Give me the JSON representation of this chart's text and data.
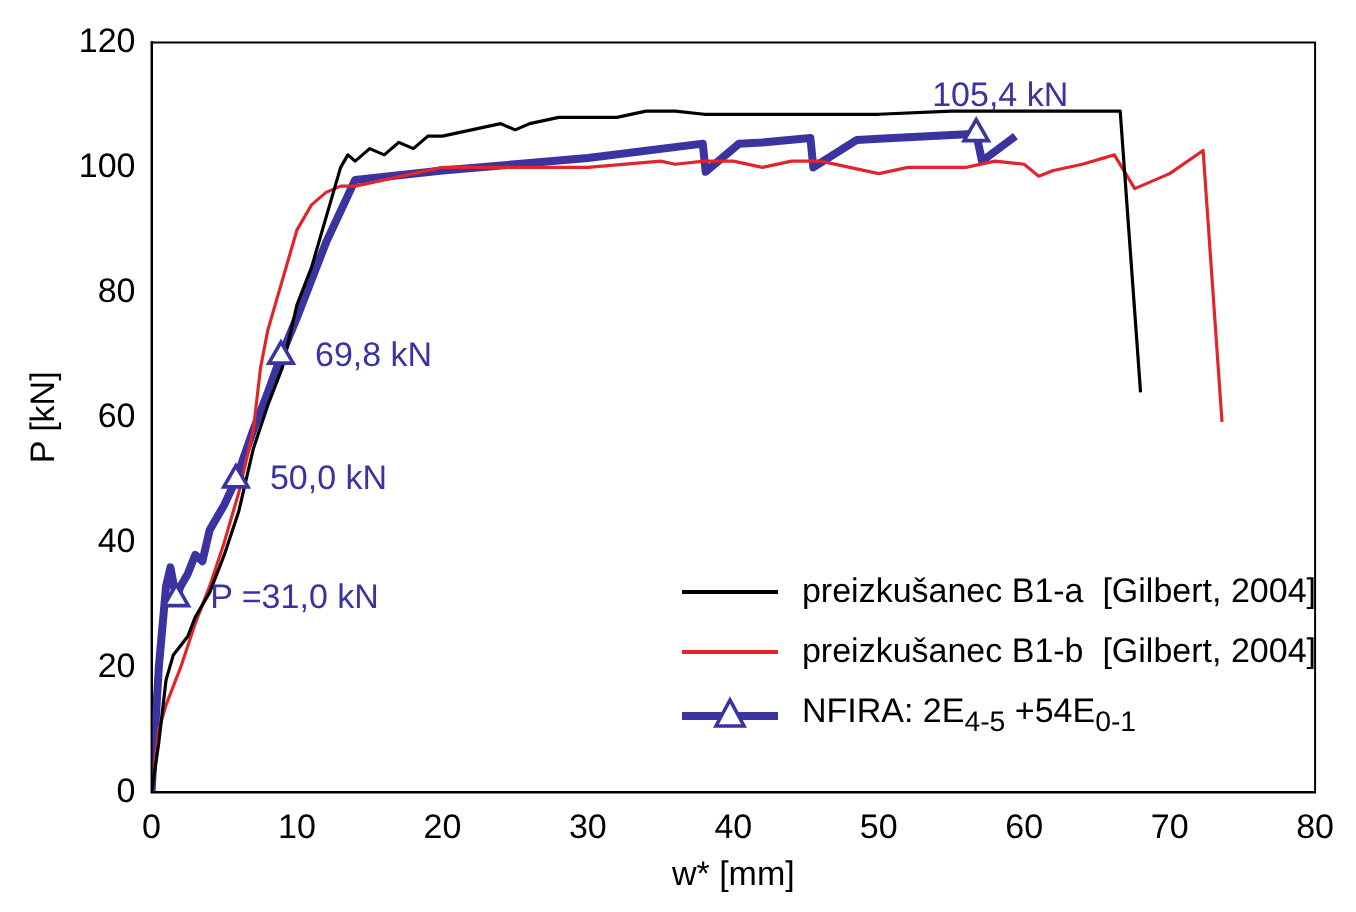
{
  "chart_data": {
    "type": "line",
    "xlabel": "w* [mm]",
    "ylabel": "P [kN]",
    "xlim": [
      0,
      80
    ],
    "xticks": [
      0,
      10,
      20,
      30,
      40,
      50,
      60,
      70,
      80
    ],
    "ylim": [
      0,
      120
    ],
    "yticks": [
      0,
      20,
      40,
      60,
      80,
      100,
      120
    ],
    "grid": false,
    "legend": "bottom right",
    "series": [
      {
        "name": "preizkušanec B1-a  [Gilbert, 2004]",
        "color": "#000000",
        "marker": "none",
        "x": [
          0,
          0.5,
          1,
          1.5,
          2.5,
          3,
          4,
          5,
          6,
          7,
          8,
          9,
          10,
          11,
          12,
          13,
          13.5,
          14,
          15,
          16,
          17,
          18,
          19,
          20,
          22,
          24,
          25,
          26,
          28,
          30,
          32,
          34,
          36,
          38,
          40,
          45,
          50,
          55,
          60,
          64,
          66.6,
          68
        ],
        "values": [
          0,
          8,
          18,
          22,
          25,
          28,
          32,
          38,
          45,
          55,
          62,
          68,
          78,
          84,
          92,
          100,
          102,
          101,
          103,
          102,
          104,
          103,
          105,
          105,
          106,
          107,
          106,
          107,
          108,
          108,
          108,
          109,
          109,
          108.5,
          108.5,
          108.5,
          108.5,
          109,
          109,
          109,
          109,
          64
        ]
      },
      {
        "name": "preizkušanec B1-b  [Gilbert, 2004]",
        "color": "#e0262b",
        "marker": "none",
        "x": [
          0,
          0.5,
          1,
          2,
          3,
          4,
          5,
          6,
          7,
          7.5,
          8,
          9,
          10,
          11,
          12,
          13,
          14,
          16,
          18,
          20,
          25,
          30,
          35,
          36,
          38,
          40,
          42,
          44,
          46,
          48,
          50,
          52,
          54,
          56,
          58,
          60,
          61,
          62,
          64,
          66.2,
          67.6,
          70,
          72.3,
          73.6
        ],
        "values": [
          0,
          10,
          14,
          20,
          27,
          33,
          40,
          48,
          58,
          68,
          74,
          82,
          90,
          94,
          96,
          97,
          97,
          98,
          99,
          100,
          100,
          100,
          101,
          100.5,
          101,
          101,
          100,
          101,
          101,
          100,
          99,
          100,
          100,
          100,
          101,
          100.5,
          98.6,
          99.5,
          100.5,
          102,
          96.6,
          99,
          102.7,
          59.3
        ]
      },
      {
        "name": "NFIRA: 2E$_{4-5}$ +54E$_{0-1}$",
        "color": "#3b33a0",
        "marker": "none",
        "x": [
          0,
          0.5,
          1,
          1.3,
          1.7,
          2,
          2.5,
          3,
          3.5,
          4,
          5,
          5.8,
          7,
          8,
          8.9,
          10,
          12,
          14,
          20,
          25,
          30,
          37.9,
          38.1,
          40.4,
          42,
          45.3,
          45.5,
          48.5,
          50,
          56.7,
          57.1,
          59.4
        ],
        "values": [
          0,
          20,
          33,
          36,
          31,
          33,
          35,
          38,
          37,
          42,
          46,
          50,
          58,
          64,
          69.8,
          76,
          88,
          98,
          99.5,
          100.5,
          101.5,
          103.8,
          99.3,
          103.8,
          104,
          104.7,
          100,
          104.4,
          104.6,
          105.4,
          101,
          105
        ]
      },
      {
        "type": "scatter",
        "color": "#3b33a0",
        "marker": "triangle",
        "x": [
          1.7,
          5.8,
          8.9,
          56.7
        ],
        "values": [
          31,
          50,
          69.8,
          105.4
        ]
      }
    ],
    "annotations": [
      {
        "text": "P =31,0 kN",
        "x": 1.7,
        "y": 31
      },
      {
        "text": "50,0 kN",
        "x": 5.8,
        "y": 50
      },
      {
        "text": "69,8 kN",
        "x": 8.9,
        "y": 69.8
      },
      {
        "text": "105,4 kN",
        "x": 56.7,
        "y": 105.4
      }
    ]
  }
}
